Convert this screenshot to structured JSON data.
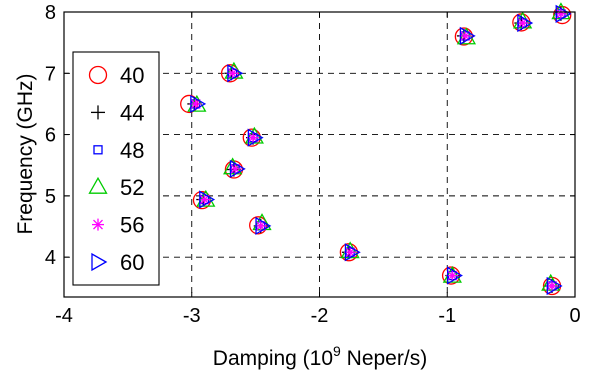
{
  "chart_data": {
    "type": "scatter",
    "title": "",
    "xlabel": "Damping (10",
    "xlabel_sup": "9",
    "xlabel_suffix": " Neper/s)",
    "ylabel": "Frequency (GHz)",
    "xlim": [
      -4,
      0
    ],
    "ylim": [
      3.35,
      8
    ],
    "xticks": [
      -4,
      -3,
      -2,
      -1,
      0
    ],
    "yticks": [
      4,
      5,
      6,
      7,
      8
    ],
    "xtick_labels": [
      "-4",
      "-3",
      "-2",
      "-1",
      "0"
    ],
    "ytick_labels": [
      "4",
      "5",
      "6",
      "7",
      "8"
    ],
    "grid": true,
    "legend_position": "left",
    "series": [
      {
        "name": "40",
        "marker": "circle",
        "color": "#ff0000",
        "x": [
          -0.1,
          -0.42,
          -0.87,
          -2.7,
          -3.02,
          -2.53,
          -2.67,
          -2.92,
          -2.48,
          -1.77,
          -0.97,
          -0.18
        ],
        "y": [
          7.95,
          7.83,
          7.6,
          7.0,
          6.5,
          5.95,
          5.43,
          4.93,
          4.52,
          4.08,
          3.7,
          3.53
        ]
      },
      {
        "name": "44",
        "marker": "plus",
        "color": "#000000",
        "x": [
          -0.11,
          -0.42,
          -0.87,
          -2.69,
          -2.98,
          -2.52,
          -2.67,
          -2.91,
          -2.46,
          -1.77,
          -0.96,
          -0.18
        ],
        "y": [
          7.97,
          7.82,
          7.61,
          7.0,
          6.5,
          5.95,
          5.43,
          4.94,
          4.51,
          4.08,
          3.7,
          3.53
        ]
      },
      {
        "name": "48",
        "marker": "square",
        "color": "#0000ff",
        "x": [
          -0.11,
          -0.41,
          -0.86,
          -2.68,
          -2.97,
          -2.52,
          -2.66,
          -2.9,
          -2.46,
          -1.76,
          -0.96,
          -0.18
        ],
        "y": [
          7.97,
          7.82,
          7.61,
          7.0,
          6.5,
          5.95,
          5.44,
          4.94,
          4.51,
          4.08,
          3.7,
          3.53
        ]
      },
      {
        "name": "52",
        "marker": "triangle-up",
        "color": "#00cc00",
        "x": [
          -0.11,
          -0.41,
          -0.85,
          -2.67,
          -2.96,
          -2.51,
          -2.68,
          -2.89,
          -2.45,
          -1.76,
          -0.96,
          -0.19
        ],
        "y": [
          7.99,
          7.84,
          7.58,
          7.02,
          6.48,
          5.96,
          5.46,
          4.93,
          4.55,
          4.09,
          3.69,
          3.56
        ]
      },
      {
        "name": "56",
        "marker": "asterisk",
        "color": "#ff00ff",
        "x": [
          -0.11,
          -0.41,
          -0.86,
          -2.68,
          -2.97,
          -2.52,
          -2.66,
          -2.9,
          -2.46,
          -1.76,
          -0.96,
          -0.18
        ],
        "y": [
          7.97,
          7.82,
          7.61,
          7.0,
          6.5,
          5.95,
          5.44,
          4.94,
          4.51,
          4.08,
          3.7,
          3.53
        ]
      },
      {
        "name": "60",
        "marker": "triangle-right",
        "color": "#0000ff",
        "x": [
          -0.1,
          -0.4,
          -0.85,
          -2.67,
          -2.96,
          -2.51,
          -2.65,
          -2.89,
          -2.45,
          -1.75,
          -0.95,
          -0.17
        ],
        "y": [
          7.97,
          7.82,
          7.61,
          7.0,
          6.5,
          5.95,
          5.44,
          4.94,
          4.51,
          4.08,
          3.7,
          3.53
        ]
      }
    ]
  }
}
